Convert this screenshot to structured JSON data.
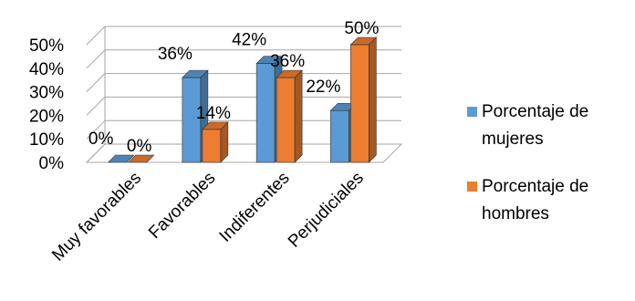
{
  "chart_data": {
    "type": "bar",
    "categories": [
      "Muy favorables",
      "Favorables",
      "Indiferentes",
      "Perjudiciales"
    ],
    "series": [
      {
        "name": "Porcentaje de mujeres",
        "values": [
          0,
          36,
          42,
          22
        ],
        "labels": [
          "0%",
          "36%",
          "42%",
          "22%"
        ],
        "color": "#5B9BD5"
      },
      {
        "name": "Porcentaje de hombres",
        "values": [
          0,
          14,
          36,
          50
        ],
        "labels": [
          "0%",
          "14%",
          "36%",
          "50%"
        ],
        "color": "#ED7D31"
      }
    ],
    "y_ticks": [
      "0%",
      "10%",
      "20%",
      "30%",
      "40%",
      "50%"
    ],
    "ylim": [
      0,
      50
    ],
    "title": "",
    "xlabel": "",
    "ylabel": "",
    "grid": true,
    "legend_position": "right"
  }
}
